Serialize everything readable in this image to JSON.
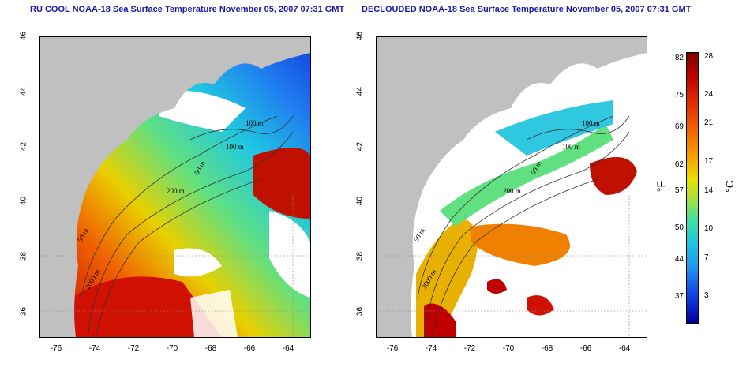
{
  "left_panel": {
    "title": "RU COOL NOAA-18 Sea Surface Temperature November 05, 2007 07:31 GMT",
    "contour_labels": [
      "100 m",
      "100 m",
      "50 m",
      "200 m",
      "50 m",
      "2000 m"
    ]
  },
  "right_panel": {
    "title": "DECLOUDED NOAA-18 Sea Surface Temperature November 05, 2007 07:31 GMT",
    "contour_labels": [
      "100 m",
      "100 m",
      "50 m",
      "200 m",
      "50 m",
      "2000 m"
    ]
  },
  "axes": {
    "lat_ticks": [
      "46",
      "44",
      "42",
      "40",
      "38",
      "36"
    ],
    "lon_ticks": [
      "-76",
      "-74",
      "-72",
      "-70",
      "-68",
      "-66",
      "-64"
    ]
  },
  "colorbar": {
    "fahrenheit_ticks": [
      "82",
      "75",
      "69",
      "62",
      "57",
      "50",
      "44",
      "37"
    ],
    "celsius_ticks": [
      "28",
      "24",
      "21",
      "17",
      "14",
      "10",
      "7",
      "3"
    ],
    "unit_f": "°F",
    "unit_c": "°C",
    "colors": [
      "#7a0000",
      "#b80000",
      "#e02a00",
      "#f06000",
      "#f7a000",
      "#e8e000",
      "#a8e040",
      "#40e0a0",
      "#20c8e0",
      "#2090f0",
      "#1040e0",
      "#0000a0"
    ]
  },
  "map_colors": {
    "land": "#c0c0c0",
    "cloud": "#ffffff"
  }
}
